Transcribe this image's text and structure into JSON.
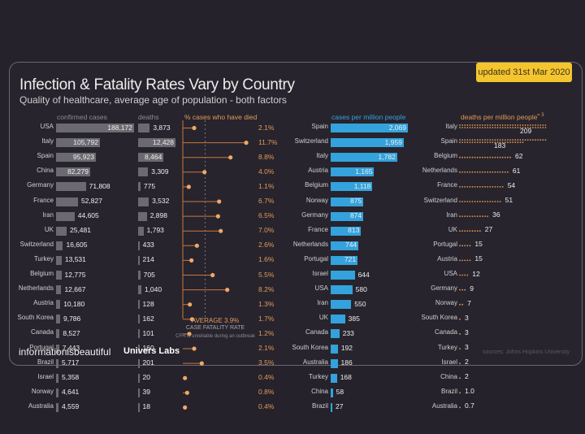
{
  "badge": "updated 31st Mar 2020",
  "title": "Infection & Fatality Rates Vary by Country",
  "subtitle": "Quality of healthcare, average age of population - both factors",
  "footer": {
    "logo1": "informationisbeautiful",
    "logo2": "Univers Labs",
    "source": "sources: Johns Hopkins University"
  },
  "colors": {
    "grey_bar": "#6b6a70",
    "orange": "#e29a5a",
    "blue": "#34a2dc",
    "badge": "#f5c52e"
  },
  "chart_data": [
    {
      "type": "bar",
      "title": "confirmed cases",
      "categories": [
        "USA",
        "Italy",
        "Spain",
        "China",
        "Germany",
        "France",
        "Iran",
        "UK",
        "Switzerland",
        "Turkey",
        "Belgium",
        "Netherlands",
        "Austria",
        "South Korea",
        "Canada",
        "Portugal",
        "Brazil",
        "Israel",
        "Norway",
        "Australia"
      ],
      "values": [
        188172,
        105792,
        95923,
        82279,
        71808,
        52827,
        44605,
        25481,
        16605,
        13531,
        12775,
        12667,
        10180,
        9786,
        8527,
        7443,
        5717,
        5358,
        4641,
        4559
      ],
      "labels": [
        "188,172",
        "105,792",
        "95,923",
        "82,279",
        "71,808",
        "52,827",
        "44,605",
        "25,481",
        "16,605",
        "13,531",
        "12,775",
        "12,667",
        "10,180",
        "9,786",
        "8,527",
        "7,443",
        "5,717",
        "5,358",
        "4,641",
        "4,559"
      ]
    },
    {
      "type": "bar",
      "title": "deaths",
      "categories": [
        "USA",
        "Italy",
        "Spain",
        "China",
        "Germany",
        "France",
        "Iran",
        "UK",
        "Switzerland",
        "Turkey",
        "Belgium",
        "Netherlands",
        "Austria",
        "South Korea",
        "Canada",
        "Portugal",
        "Brazil",
        "Israel",
        "Norway",
        "Australia"
      ],
      "values": [
        3873,
        12428,
        8464,
        3309,
        775,
        3532,
        2898,
        1793,
        433,
        214,
        705,
        1040,
        128,
        162,
        101,
        160,
        201,
        20,
        39,
        18
      ],
      "labels": [
        "3,873",
        "12,428",
        "8,464",
        "3,309",
        "775",
        "3,532",
        "2,898",
        "1,793",
        "433",
        "214",
        "705",
        "1,040",
        "128",
        "162",
        "101",
        "160",
        "201",
        "20",
        "39",
        "18"
      ]
    },
    {
      "type": "scatter",
      "title": "% cases who have died",
      "categories": [
        "USA",
        "Italy",
        "Spain",
        "China",
        "Germany",
        "France",
        "Iran",
        "UK",
        "Switzerland",
        "Turkey",
        "Belgium",
        "Netherlands",
        "Austria",
        "South Korea",
        "Canada",
        "Portugal",
        "Brazil",
        "Israel",
        "Norway",
        "Australia"
      ],
      "values": [
        2.1,
        11.7,
        8.8,
        4.0,
        1.1,
        6.7,
        6.5,
        7.0,
        2.6,
        1.6,
        5.5,
        8.2,
        1.3,
        1.7,
        1.2,
        2.1,
        3.5,
        0.4,
        0.8,
        0.4
      ],
      "labels": [
        "2.1%",
        "11.7%",
        "8.8%",
        "4.0%",
        "1.1%",
        "6.7%",
        "6.5%",
        "7.0%",
        "2.6%",
        "1.6%",
        "5.5%",
        "8.2%",
        "1.3%",
        "1.7%",
        "1.2%",
        "2.1%",
        "3.5%",
        "0.4%",
        "0.8%",
        "0.4%"
      ],
      "average": 3.9,
      "average_label": "AVERAGE 3.9%",
      "average_sublabel": "CASE FATALITY RATE",
      "note": "CFR is unreliable during an outbreak",
      "xlim": [
        0,
        12
      ]
    },
    {
      "type": "bar",
      "title": "cases per million people",
      "categories": [
        "Spain",
        "Switzerland",
        "Italy",
        "Austria",
        "Belgium",
        "Norway",
        "Germany",
        "France",
        "Netherlands",
        "Portugal",
        "Israel",
        "USA",
        "Iran",
        "UK",
        "Canada",
        "South Korea",
        "Australia",
        "Turkey",
        "China",
        "Brazil"
      ],
      "values": [
        2069,
        1959,
        1782,
        1165,
        1118,
        875,
        874,
        813,
        744,
        721,
        644,
        580,
        550,
        385,
        233,
        192,
        186,
        168,
        58,
        27
      ],
      "labels": [
        "2,069",
        "1,959",
        "1,782",
        "1,165",
        "1,118",
        "875",
        "874",
        "813",
        "744",
        "721",
        "644",
        "580",
        "550",
        "385",
        "233",
        "192",
        "186",
        "168",
        "58",
        "27"
      ]
    },
    {
      "type": "bar",
      "title": "deaths per million people",
      "legend": "= 3",
      "categories": [
        "Italy",
        "Spain",
        "Belgium",
        "Netherlands",
        "France",
        "Switzerland",
        "Iran",
        "UK",
        "Portugal",
        "Austria",
        "USA",
        "Germany",
        "Norway",
        "South Korea",
        "Canada",
        "Turkey",
        "Israel",
        "China",
        "Brazil",
        "Australia"
      ],
      "values": [
        209,
        183,
        62,
        61,
        54,
        51,
        36,
        27,
        15,
        15,
        12,
        9,
        7,
        3,
        3,
        3,
        2,
        2,
        1.0,
        0.7
      ],
      "labels": [
        "209",
        "183",
        "62",
        "61",
        "54",
        "51",
        "36",
        "27",
        "15",
        "15",
        "12",
        "9",
        "7",
        "3",
        "3",
        "3",
        "2",
        "2",
        "1.0",
        "0.7"
      ]
    }
  ]
}
